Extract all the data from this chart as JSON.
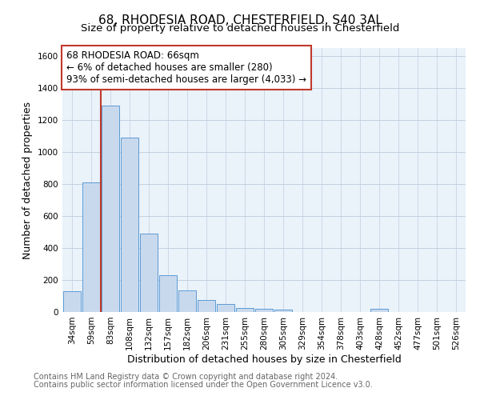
{
  "title1": "68, RHODESIA ROAD, CHESTERFIELD, S40 3AL",
  "title2": "Size of property relative to detached houses in Chesterfield",
  "xlabel": "Distribution of detached houses by size in Chesterfield",
  "ylabel": "Number of detached properties",
  "categories": [
    "34sqm",
    "59sqm",
    "83sqm",
    "108sqm",
    "132sqm",
    "157sqm",
    "182sqm",
    "206sqm",
    "231sqm",
    "255sqm",
    "280sqm",
    "305sqm",
    "329sqm",
    "354sqm",
    "378sqm",
    "403sqm",
    "428sqm",
    "452sqm",
    "477sqm",
    "501sqm",
    "526sqm"
  ],
  "values": [
    130,
    810,
    1290,
    1090,
    490,
    230,
    135,
    75,
    50,
    25,
    20,
    15,
    0,
    0,
    0,
    0,
    20,
    0,
    0,
    0,
    0
  ],
  "bar_color": "#c9d9ed",
  "bar_edge_color": "#5b9bd5",
  "vline_x_index": 1.5,
  "vline_color": "#c0392b",
  "annotation_line1": "68 RHODESIA ROAD: 66sqm",
  "annotation_line2": "← 6% of detached houses are smaller (280)",
  "annotation_line3": "93% of semi-detached houses are larger (4,033) →",
  "annotation_box_color": "#c0392b",
  "ylim": [
    0,
    1650
  ],
  "yticks": [
    0,
    200,
    400,
    600,
    800,
    1000,
    1200,
    1400,
    1600
  ],
  "footer1": "Contains HM Land Registry data © Crown copyright and database right 2024.",
  "footer2": "Contains public sector information licensed under the Open Government Licence v3.0.",
  "bg_color": "#ffffff",
  "plot_bg_color": "#eaf2fa",
  "grid_color": "#c0d0e0",
  "title1_fontsize": 11,
  "title2_fontsize": 9.5,
  "xlabel_fontsize": 9,
  "ylabel_fontsize": 9,
  "tick_fontsize": 7.5,
  "annotation_fontsize": 8.5,
  "footer_fontsize": 7
}
